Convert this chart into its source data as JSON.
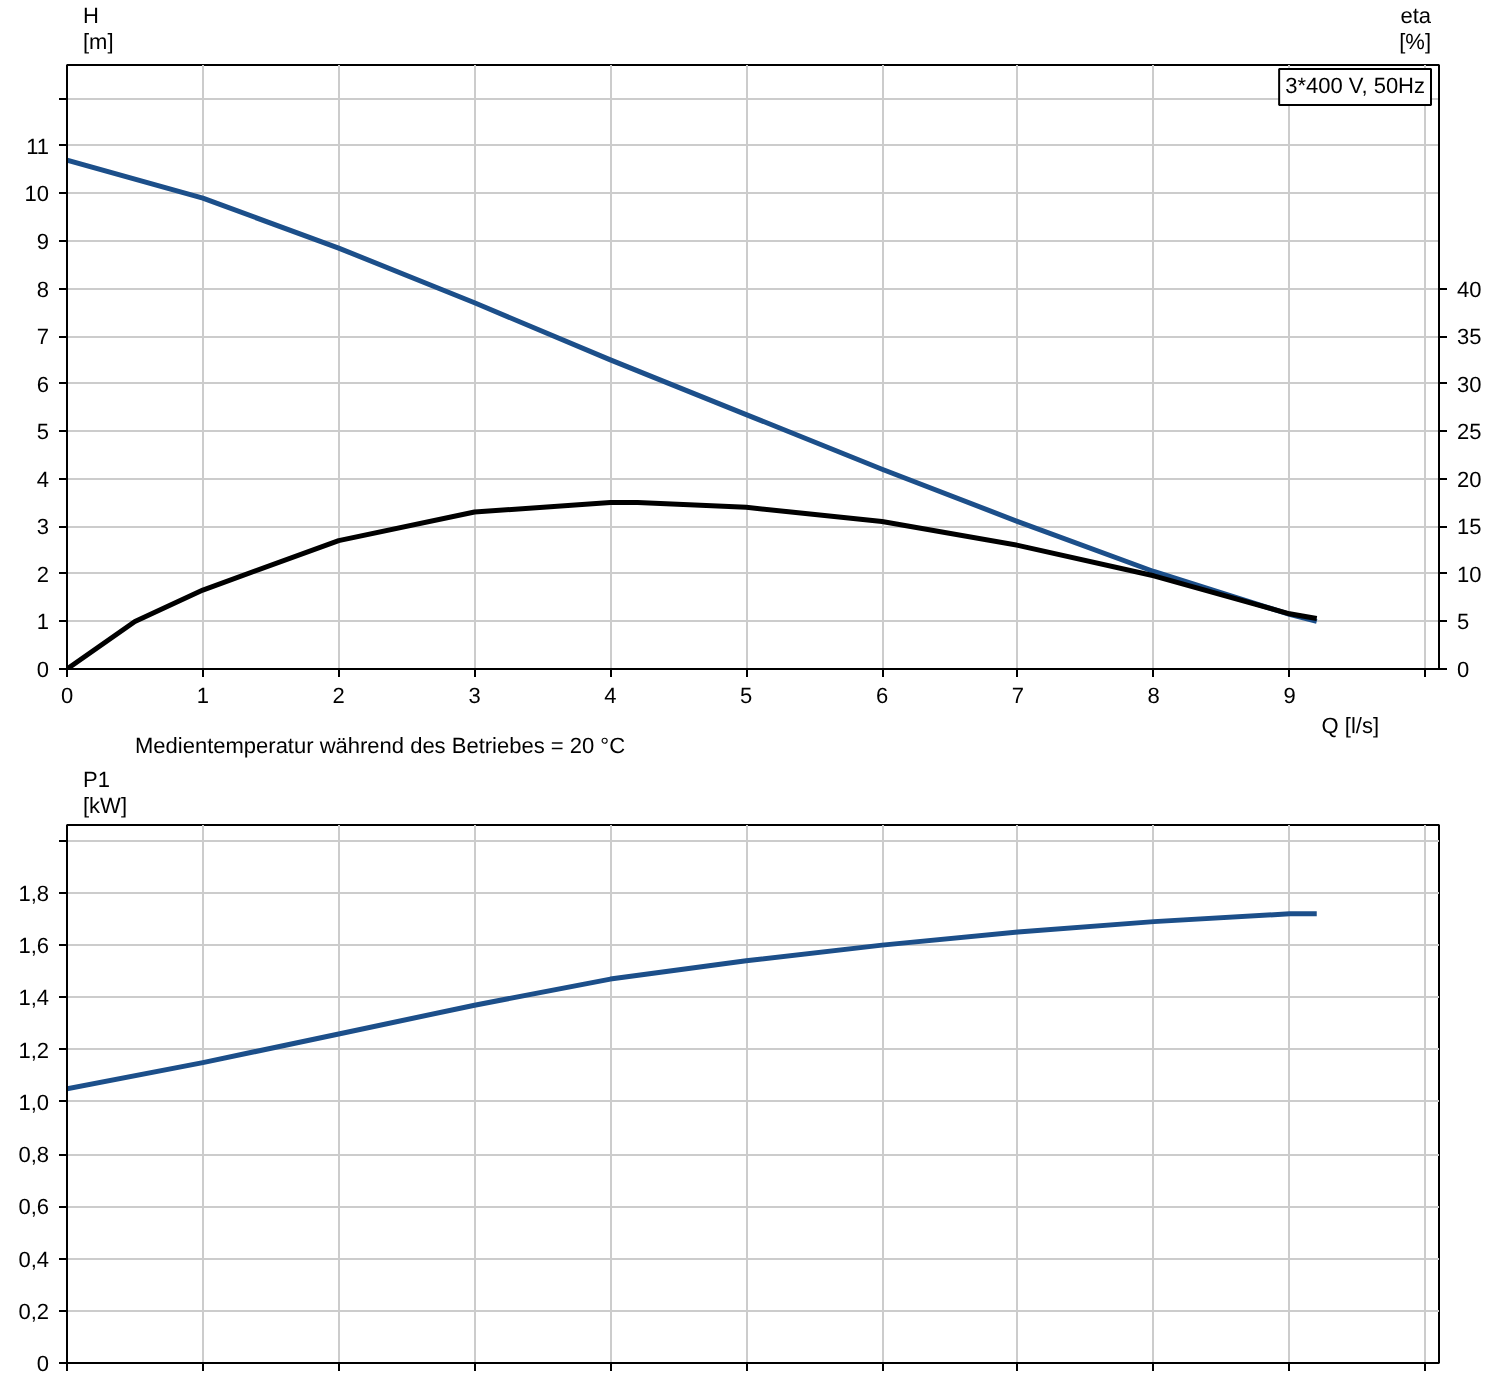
{
  "chart_data": [
    {
      "type": "line",
      "ylabel": "H [m]",
      "y2label": "eta [%]",
      "xlabel": "Q [l/s]",
      "annotations": [
        "3*400 V, 50Hz",
        "Medientemperatur während des Betriebes = 20 °C"
      ],
      "series": [
        {
          "color": "#1c4f8a",
          "x": [
            0,
            1,
            2,
            3,
            4,
            5,
            6,
            7,
            8,
            9,
            9.2
          ],
          "values": [
            10.7,
            9.9,
            8.85,
            7.7,
            6.5,
            5.35,
            4.2,
            3.1,
            2.05,
            1.15,
            1.0
          ]
        },
        {
          "color": "#000000",
          "axis": "y2",
          "x": [
            0,
            0.5,
            1,
            2,
            3,
            4,
            4.2,
            5,
            6,
            7,
            8,
            9,
            9.2
          ],
          "values": [
            0,
            5,
            8.3,
            13.5,
            16.5,
            17.5,
            17.5,
            17,
            15.5,
            13,
            9.8,
            5.8,
            5.3
          ]
        }
      ],
      "xlim": [
        0,
        10.1
      ],
      "xticks": [
        0,
        1,
        2,
        3,
        4,
        5,
        6,
        7,
        8,
        9,
        {
          "value": 10,
          "label": null
        }
      ],
      "ylim": [
        0,
        12.7
      ],
      "yticks": [
        0,
        1,
        2,
        3,
        4,
        5,
        6,
        7,
        8,
        9,
        10,
        11,
        {
          "value": 12,
          "label": null
        }
      ],
      "y2lim": [
        0,
        63.5
      ],
      "y2ticks": [
        0,
        5,
        10,
        15,
        20,
        25,
        30,
        35,
        40
      ],
      "grid": true
    },
    {
      "type": "line",
      "ylabel": "P1 [kW]",
      "series": [
        {
          "color": "#1c4f8a",
          "x": [
            0,
            1,
            2,
            3,
            4,
            5,
            6,
            7,
            8,
            9,
            9.2
          ],
          "values": [
            1.05,
            1.15,
            1.26,
            1.37,
            1.47,
            1.54,
            1.6,
            1.65,
            1.69,
            1.72,
            1.72
          ]
        }
      ],
      "xlim": [
        0,
        10.1
      ],
      "xticks": [
        0,
        1,
        2,
        3,
        4,
        5,
        6,
        7,
        8,
        9,
        10
      ],
      "ylim": [
        0,
        2.06
      ],
      "yticks": [
        0,
        {
          "value": 0.2,
          "label": "0,2"
        },
        {
          "value": 0.4,
          "label": "0,4"
        },
        {
          "value": 0.6,
          "label": "0,6"
        },
        {
          "value": 0.8,
          "label": "0,8"
        },
        {
          "value": 1.0,
          "label": "1,0"
        },
        {
          "value": 1.2,
          "label": "1,2"
        },
        {
          "value": 1.4,
          "label": "1,4"
        },
        {
          "value": 1.6,
          "label": "1,6"
        },
        {
          "value": 1.8,
          "label": "1,8"
        },
        {
          "value": 2.0,
          "label": null
        }
      ],
      "grid": true,
      "tick_labels": "y"
    }
  ]
}
